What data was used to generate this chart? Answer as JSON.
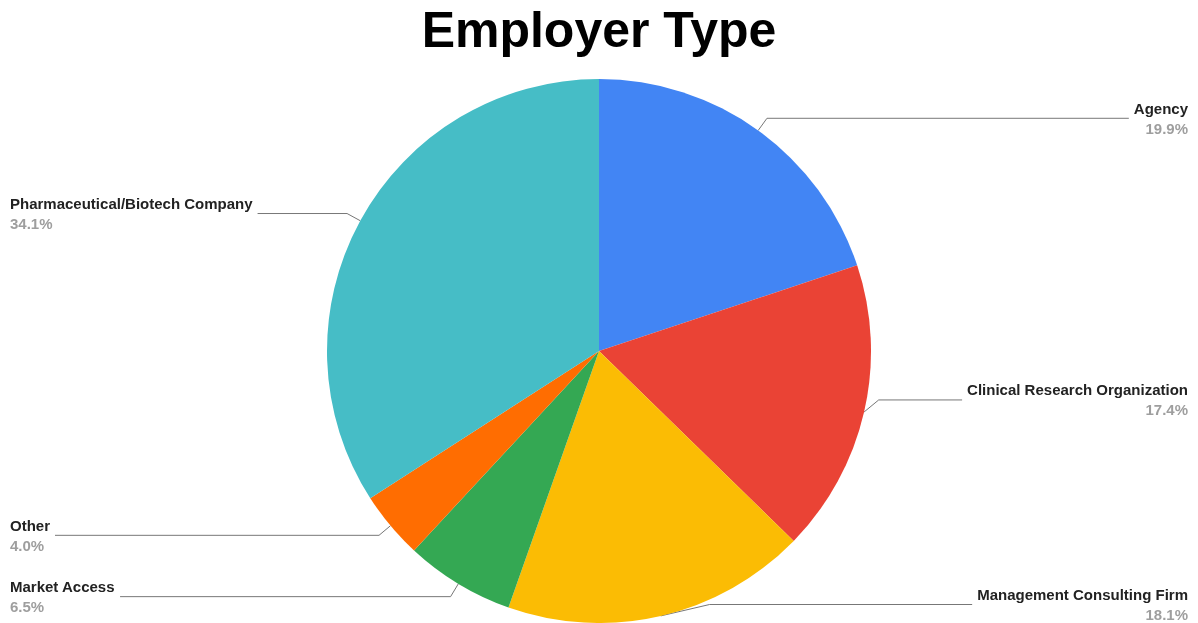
{
  "chart_data": {
    "type": "pie",
    "title": "Employer Type",
    "categories": [
      "Agency",
      "Clinical Research Organization",
      "Management Consulting Firm",
      "Market Access",
      "Other",
      "Pharmaceutical/Biotech Company"
    ],
    "values": [
      19.9,
      17.4,
      18.1,
      6.5,
      4.0,
      34.1
    ],
    "value_labels": [
      "19.9%",
      "17.4%",
      "18.1%",
      "6.5%",
      "4.0%",
      "34.1%"
    ],
    "colors": [
      "#4285f4",
      "#ea4335",
      "#fbbc04",
      "#34a853",
      "#ff6d01",
      "#46bdc6"
    ],
    "legend": false
  }
}
